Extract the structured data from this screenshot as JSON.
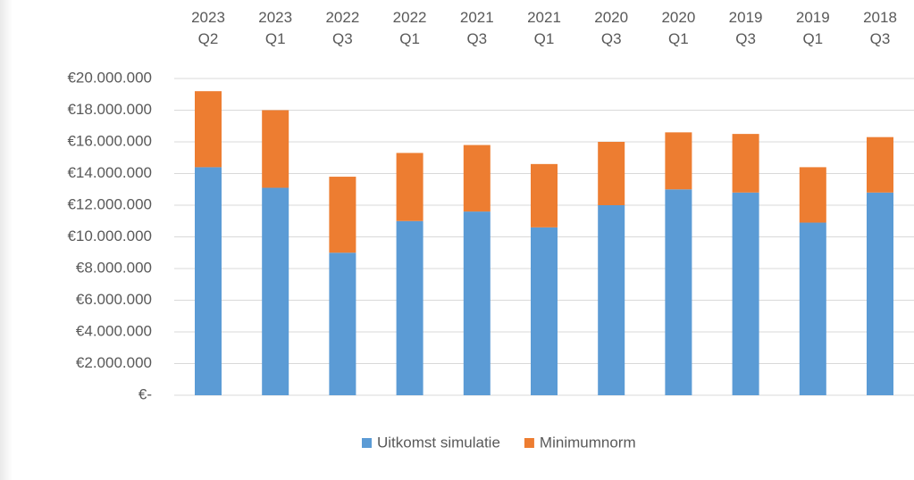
{
  "chart_data": {
    "type": "stacked-bar",
    "categories": [
      "2023 Q2",
      "2023 Q1",
      "2022 Q3",
      "2022 Q1",
      "2021 Q3",
      "2021 Q1",
      "2020 Q3",
      "2020 Q1",
      "2019 Q3",
      "2019 Q1",
      "2018 Q3"
    ],
    "series": [
      {
        "name": "Uitkomst simulatie",
        "color": "#5b9bd5",
        "values": [
          14400000,
          13100000,
          9000000,
          11000000,
          11600000,
          10600000,
          12000000,
          13000000,
          12800000,
          10900000,
          12800000
        ]
      },
      {
        "name": "Minimumnorm",
        "color": "#ed7d31",
        "values": [
          4800000,
          4900000,
          4800000,
          4300000,
          4200000,
          4000000,
          4000000,
          3600000,
          3700000,
          3500000,
          3500000
        ]
      }
    ],
    "ylim": [
      0,
      20000000
    ],
    "yticks": [
      {
        "value": 0,
        "label": "€-"
      },
      {
        "value": 2000000,
        "label": "€2.000.000"
      },
      {
        "value": 4000000,
        "label": "€4.000.000"
      },
      {
        "value": 6000000,
        "label": "€6.000.000"
      },
      {
        "value": 8000000,
        "label": "€8.000.000"
      },
      {
        "value": 10000000,
        "label": "€10.000.000"
      },
      {
        "value": 12000000,
        "label": "€12.000.000"
      },
      {
        "value": 14000000,
        "label": "€14.000.000"
      },
      {
        "value": 16000000,
        "label": "€16.000.000"
      },
      {
        "value": 18000000,
        "label": "€18.000.000"
      },
      {
        "value": 20000000,
        "label": "€20.000.000"
      }
    ],
    "grid": true,
    "legend": "bottom"
  }
}
